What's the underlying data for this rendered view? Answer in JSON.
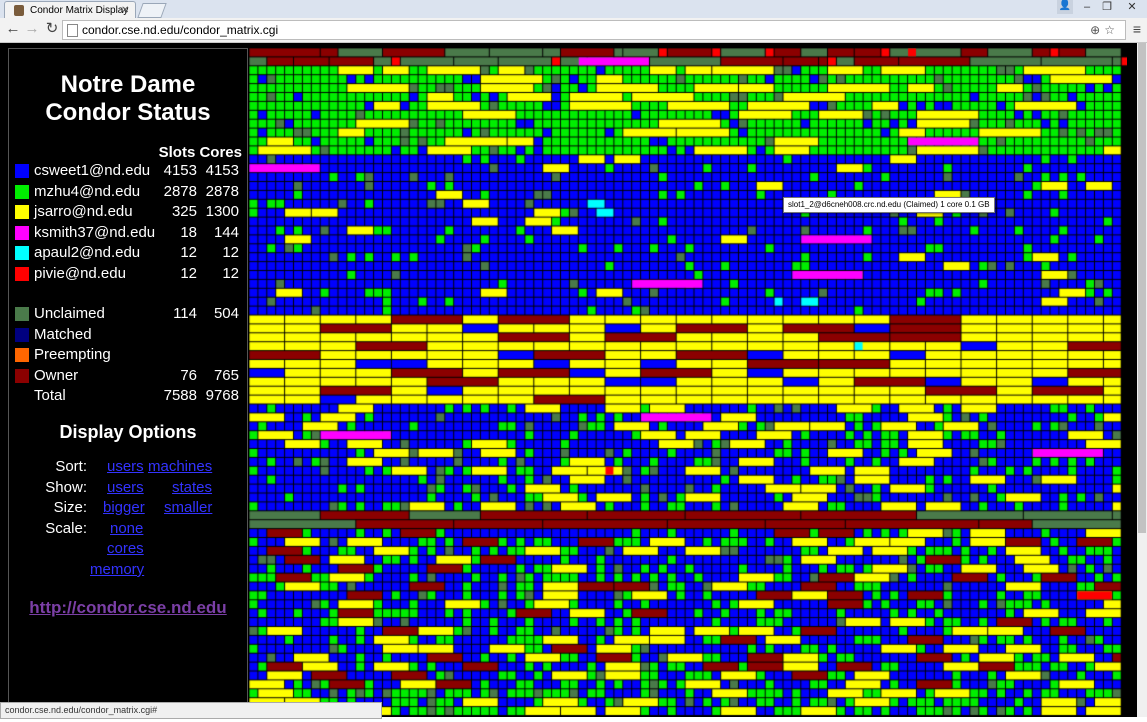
{
  "browser": {
    "tab_title": "Condor Matrix Display",
    "url": "condor.cse.nd.edu/condor_matrix.cgi",
    "status_url": "condor.cse.nd.edu/condor_matrix.cgi#"
  },
  "sidebar": {
    "heading_line1": "Notre Dame",
    "heading_line2": "Condor Status",
    "col_slots": "Slots",
    "col_cores": "Cores",
    "users": [
      {
        "label": "csweet1@nd.edu",
        "slots": "4153",
        "cores": "4153",
        "color": "#0000ff"
      },
      {
        "label": "mzhu4@nd.edu",
        "slots": "2878",
        "cores": "2878",
        "color": "#00ee00"
      },
      {
        "label": "jsarro@nd.edu",
        "slots": "325",
        "cores": "1300",
        "color": "#ffff00"
      },
      {
        "label": "ksmith37@nd.edu",
        "slots": "18",
        "cores": "144",
        "color": "#ff00ff"
      },
      {
        "label": "apaul2@nd.edu",
        "slots": "12",
        "cores": "12",
        "color": "#00ffff"
      },
      {
        "label": "pivie@nd.edu",
        "slots": "12",
        "cores": "12",
        "color": "#ff0000"
      }
    ],
    "states": [
      {
        "label": "Unclaimed",
        "slots": "114",
        "cores": "504",
        "color": "#4a7a4a"
      },
      {
        "label": "Matched",
        "slots": "",
        "cores": "",
        "color": "#000080"
      },
      {
        "label": "Preempting",
        "slots": "",
        "cores": "",
        "color": "#ff6600"
      },
      {
        "label": "Owner",
        "slots": "76",
        "cores": "765",
        "color": "#8b0000"
      },
      {
        "label": "Total",
        "slots": "7588",
        "cores": "9768",
        "color": ""
      }
    ],
    "options_title": "Display Options",
    "options": {
      "sort_label": "Sort:",
      "sort_users": "users",
      "sort_machines": "machines",
      "show_label": "Show:",
      "show_users": "users",
      "show_states": "states",
      "size_label": "Size:",
      "size_bigger": "bigger",
      "size_smaller": "smaller",
      "scale_label": "Scale:",
      "scale_none": "none",
      "scale_cores": "cores",
      "scale_memory": "memory"
    },
    "home_link": "http://condor.cse.nd.edu"
  },
  "matrix": {
    "tooltip": "slot1_2@d6cneh008.crc.nd.edu (Claimed) 1 core 0.1 GB",
    "colors": {
      "blue": "#0000ff",
      "green": "#00ee00",
      "yellow": "#ffff00",
      "magenta": "#ff00ff",
      "cyan": "#00ffff",
      "red": "#ff0000",
      "unclaimed": "#4a7a4a",
      "owner": "#8b0000"
    }
  }
}
